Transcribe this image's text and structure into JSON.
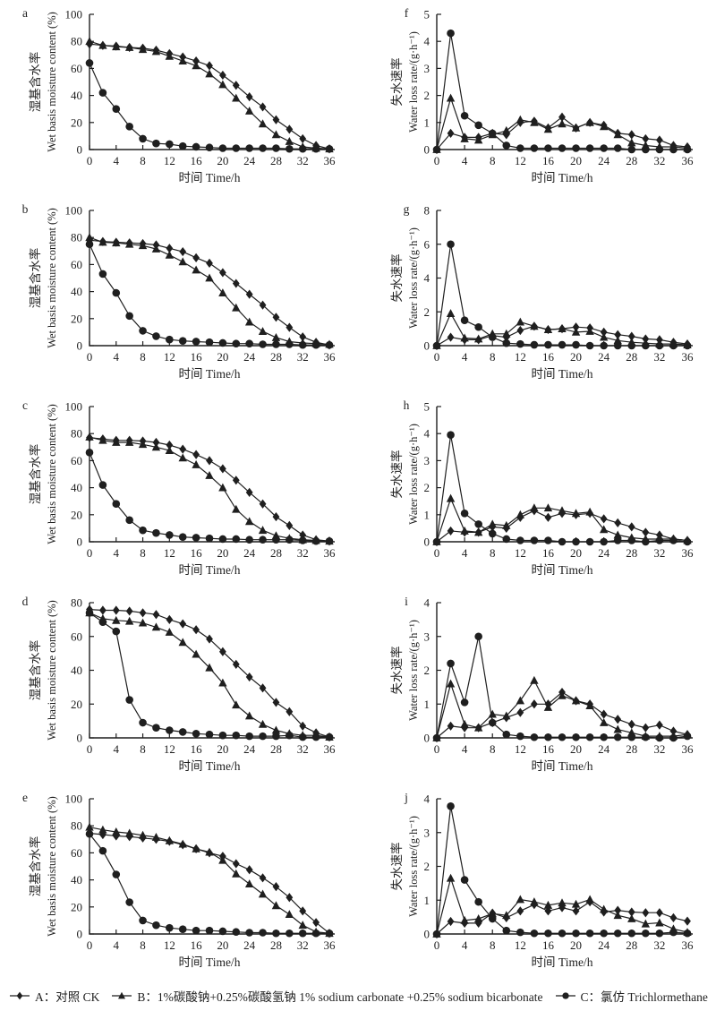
{
  "style": {
    "ink": "#1f1f1f",
    "background": "#ffffff"
  },
  "legend": {
    "items": [
      {
        "marker": "diamond",
        "label": "A：对照 CK"
      },
      {
        "marker": "triangle",
        "label": "B：1%碳酸钠+0.25%碳酸氢钠 1% sodium carbonate +0.25% sodium bicarbonate"
      },
      {
        "marker": "circle",
        "label": "C：氯仿 Trichlormethane"
      }
    ]
  },
  "chart_data": {
    "type": "line",
    "x_label": "时间 Time/h",
    "x": [
      0,
      2,
      4,
      6,
      8,
      10,
      12,
      14,
      16,
      18,
      20,
      22,
      24,
      26,
      28,
      30,
      32,
      34,
      36
    ],
    "x_ticks": [
      0,
      4,
      8,
      12,
      16,
      20,
      24,
      28,
      32,
      36
    ],
    "grid": "off",
    "series_names": {
      "A": "对照 CK",
      "B": "1%碳酸钠+0.25%碳酸氢钠 1% sodium carbonate +0.25% sodium bicarbonate",
      "C": "氯仿 Trichlormethane"
    },
    "markers": {
      "A": "diamond",
      "B": "triangle",
      "C": "circle"
    },
    "panels": [
      {
        "panel": "a",
        "col": "left",
        "ylabel_zh": "湿基含水率",
        "ylabel_en": "Wet basis moisture content (%)",
        "xlabel": "时间 Time/h",
        "ylim": [
          0,
          100
        ],
        "ytick_step": 20,
        "series": {
          "A": [
            78,
            77,
            76.5,
            75.5,
            75,
            73.5,
            71,
            68.5,
            65.5,
            62,
            55,
            47.5,
            39,
            31.5,
            22,
            15,
            8,
            3,
            0.5
          ],
          "B": [
            80,
            77,
            76,
            75.5,
            74,
            72.5,
            69,
            65.5,
            62,
            56,
            48,
            38,
            28.5,
            19,
            11,
            6,
            2,
            1,
            0.5
          ],
          "C": [
            64,
            42,
            30,
            17,
            8,
            4.5,
            4,
            2.5,
            2,
            1.5,
            1,
            1,
            1,
            1,
            1,
            0.5,
            0.5,
            0.5,
            0.5
          ]
        }
      },
      {
        "panel": "b",
        "col": "left",
        "ylabel_zh": "湿基含水率",
        "ylabel_en": "Wet basis moisture content (%)",
        "xlabel": "时间 Time/h",
        "ylim": [
          0,
          100
        ],
        "ytick_step": 20,
        "series": {
          "A": [
            78,
            77,
            76.5,
            76,
            75.5,
            74.5,
            72,
            69.5,
            65,
            61,
            54,
            46,
            38,
            30,
            21,
            13.5,
            6.5,
            2.5,
            0.5
          ],
          "B": [
            80,
            76.5,
            76,
            75,
            74,
            71.5,
            67,
            62,
            56,
            50,
            39,
            28,
            17.5,
            10.5,
            6,
            3,
            2,
            1.5,
            1
          ],
          "C": [
            75,
            53,
            39,
            22,
            11,
            7,
            4.5,
            3.5,
            3,
            2.5,
            2,
            1.5,
            1.5,
            1,
            1,
            1,
            0.5,
            0.5,
            0.5
          ]
        }
      },
      {
        "panel": "c",
        "col": "left",
        "ylabel_zh": "湿基含水率",
        "ylabel_en": "Wet basis moisture content (%)",
        "xlabel": "时间 Time/h",
        "ylim": [
          0,
          100
        ],
        "ytick_step": 20,
        "series": {
          "A": [
            77,
            76,
            75,
            75,
            74.5,
            73.5,
            71.5,
            68.5,
            64.5,
            60,
            54,
            45.5,
            36.5,
            28,
            18.5,
            12,
            5,
            1.5,
            0.5
          ],
          "B": [
            77.5,
            75,
            73.5,
            73.5,
            72,
            70,
            67.5,
            62,
            57,
            49,
            40,
            24,
            15,
            8.5,
            4.5,
            2.5,
            1.5,
            1,
            0.5
          ],
          "C": [
            66,
            42,
            28,
            16,
            8.5,
            6.5,
            5,
            3.5,
            3,
            2.5,
            2,
            2,
            1.5,
            1.5,
            1.5,
            1.5,
            1,
            0.5,
            0.5
          ]
        }
      },
      {
        "panel": "d",
        "col": "left",
        "ylabel_zh": "湿基含水率",
        "ylabel_en": "Wet basis moisture content (%)",
        "xlabel": "时间 Time/h",
        "ylim": [
          0,
          80
        ],
        "ytick_step": 20,
        "series": {
          "A": [
            76,
            75.5,
            75.5,
            75,
            74,
            73,
            70,
            67.5,
            64,
            58.5,
            51,
            43.5,
            36,
            29.5,
            21,
            15.5,
            7,
            3,
            0.5
          ],
          "B": [
            74,
            70.5,
            69.5,
            69,
            68,
            65.5,
            62.5,
            56.5,
            49.5,
            41.5,
            32.5,
            19.5,
            13,
            8,
            4.5,
            2.5,
            1.5,
            1.5,
            0.5
          ],
          "C": [
            74,
            68.5,
            63,
            22.5,
            9,
            6,
            4.5,
            3.5,
            2.5,
            2,
            1.5,
            1.5,
            1,
            1,
            1,
            1.5,
            0.5,
            0.5,
            0.5
          ]
        }
      },
      {
        "panel": "e",
        "col": "left",
        "ylabel_zh": "湿基含水率",
        "ylabel_en": "Wet basis moisture content (%)",
        "xlabel": "时间 Time/h",
        "ylim": [
          0,
          100
        ],
        "ytick_step": 20,
        "series": {
          "A": [
            74.5,
            73.5,
            72.5,
            72,
            71,
            70,
            68.5,
            66,
            63,
            60,
            57.5,
            52,
            47.5,
            41.5,
            35,
            27,
            17,
            8.5,
            0.5
          ],
          "B": [
            79,
            77,
            75.5,
            74.5,
            73,
            71.5,
            69,
            66.5,
            63,
            60.5,
            54.5,
            44.5,
            37,
            29.5,
            21,
            14.5,
            6.5,
            1.5,
            0.5
          ],
          "C": [
            74,
            61.5,
            44,
            23.5,
            10,
            6.5,
            4.5,
            3.5,
            2.5,
            2.5,
            2,
            1.5,
            1,
            1,
            0.5,
            0.5,
            0.5,
            0.5,
            0.5
          ]
        }
      },
      {
        "panel": "f",
        "col": "right",
        "ylabel_zh": "失水速率",
        "ylabel_en": "Water loss rate/(g·h⁻¹)",
        "xlabel": "时间 Time/h",
        "ylim": [
          0,
          5
        ],
        "ytick_step": 1,
        "series": {
          "A": [
            0,
            0.6,
            0.45,
            0.45,
            0.6,
            0.55,
            1.0,
            1.05,
            0.8,
            1.2,
            0.8,
            1.0,
            0.9,
            0.6,
            0.55,
            0.4,
            0.35,
            0.15,
            0.1
          ],
          "B": [
            0,
            1.9,
            0.4,
            0.35,
            0.55,
            0.7,
            1.1,
            1.0,
            0.75,
            0.95,
            0.8,
            1.0,
            0.85,
            0.55,
            0.25,
            0.15,
            0.1,
            0.1,
            0.05
          ],
          "C": [
            0,
            4.3,
            1.25,
            0.9,
            0.6,
            0.15,
            0.05,
            0.05,
            0.05,
            0.05,
            0.05,
            0.05,
            0.05,
            0.05,
            0,
            0,
            0,
            0,
            0
          ]
        }
      },
      {
        "panel": "g",
        "col": "right",
        "ylabel_zh": "失水速率",
        "ylabel_en": "Water loss rate/(g·h⁻¹)",
        "xlabel": "时间 Time/h",
        "ylim": [
          0,
          8
        ],
        "ytick_step": 2,
        "series": {
          "A": [
            0,
            0.5,
            0.35,
            0.35,
            0.6,
            0.5,
            0.9,
            1.15,
            0.95,
            1.0,
            1.1,
            1.05,
            0.8,
            0.65,
            0.55,
            0.4,
            0.35,
            0.2,
            0.1
          ],
          "B": [
            0,
            1.9,
            0.45,
            0.4,
            0.7,
            0.7,
            1.4,
            1.15,
            0.95,
            1.0,
            0.8,
            0.85,
            0.5,
            0.3,
            0.2,
            0.15,
            0.1,
            0.1,
            0.05
          ],
          "C": [
            0,
            6.0,
            1.5,
            1.1,
            0.5,
            0.15,
            0.1,
            0.05,
            0.05,
            0.05,
            0.05,
            0,
            0,
            0,
            0,
            0,
            0,
            0,
            0
          ]
        }
      },
      {
        "panel": "h",
        "col": "right",
        "ylabel_zh": "失水速率",
        "ylabel_en": "Water loss rate/(g·h⁻¹)",
        "xlabel": "时间 Time/h",
        "ylim": [
          0,
          5
        ],
        "ytick_step": 1,
        "series": {
          "A": [
            0,
            0.4,
            0.35,
            0.35,
            0.55,
            0.5,
            0.9,
            1.15,
            0.9,
            1.05,
            1.0,
            1.05,
            0.85,
            0.7,
            0.55,
            0.35,
            0.25,
            0.1,
            0.05
          ],
          "B": [
            0,
            1.6,
            0.4,
            0.35,
            0.65,
            0.6,
            1.0,
            1.25,
            1.25,
            1.15,
            1.05,
            1.1,
            0.45,
            0.25,
            0.15,
            0.1,
            0.1,
            0.1,
            0.05
          ],
          "C": [
            0,
            3.95,
            1.05,
            0.65,
            0.3,
            0.1,
            0.05,
            0.05,
            0.05,
            0,
            0,
            0,
            0,
            0.05,
            0.05,
            0,
            0.05,
            0.05,
            0
          ]
        }
      },
      {
        "panel": "i",
        "col": "right",
        "ylabel_zh": "失水速率",
        "ylabel_en": "Water loss rate/(g·h⁻¹)",
        "xlabel": "时间 Time/h",
        "ylim": [
          0,
          4
        ],
        "ytick_step": 1,
        "series": {
          "A": [
            0,
            0.35,
            0.3,
            0.3,
            0.45,
            0.6,
            0.75,
            1.0,
            1.0,
            1.35,
            1.1,
            1.0,
            0.7,
            0.55,
            0.4,
            0.3,
            0.38,
            0.2,
            0.1
          ],
          "B": [
            0,
            1.6,
            0.4,
            0.3,
            0.7,
            0.65,
            1.1,
            1.7,
            0.9,
            1.25,
            1.1,
            0.95,
            0.45,
            0.25,
            0.15,
            0.05,
            0.05,
            0.05,
            0.1
          ],
          "C": [
            0,
            2.2,
            1.05,
            3.0,
            0.45,
            0.1,
            0.05,
            0.02,
            0.02,
            0.02,
            0.02,
            0.02,
            0.02,
            0.02,
            0.02,
            0.02,
            0,
            0,
            0.05
          ]
        }
      },
      {
        "panel": "j",
        "col": "right",
        "ylabel_zh": "失水速率",
        "ylabel_en": "Water loss rate/(g·h⁻¹)",
        "xlabel": "时间 Time/h",
        "ylim": [
          0,
          4
        ],
        "ytick_step": 1,
        "series": {
          "A": [
            0,
            0.37,
            0.32,
            0.32,
            0.62,
            0.48,
            0.68,
            0.87,
            0.68,
            0.78,
            0.68,
            0.95,
            0.65,
            0.7,
            0.65,
            0.63,
            0.63,
            0.48,
            0.38
          ],
          "B": [
            0,
            1.65,
            0.4,
            0.45,
            0.6,
            0.55,
            1.02,
            0.95,
            0.85,
            0.92,
            0.88,
            1.02,
            0.73,
            0.55,
            0.45,
            0.3,
            0.33,
            0.15,
            0.05
          ],
          "C": [
            0,
            3.78,
            1.6,
            0.95,
            0.45,
            0.1,
            0.05,
            0.02,
            0.02,
            0.02,
            0.02,
            0.02,
            0.02,
            0.02,
            0.02,
            0.02,
            0.02,
            0.05,
            0.02
          ]
        }
      }
    ]
  }
}
